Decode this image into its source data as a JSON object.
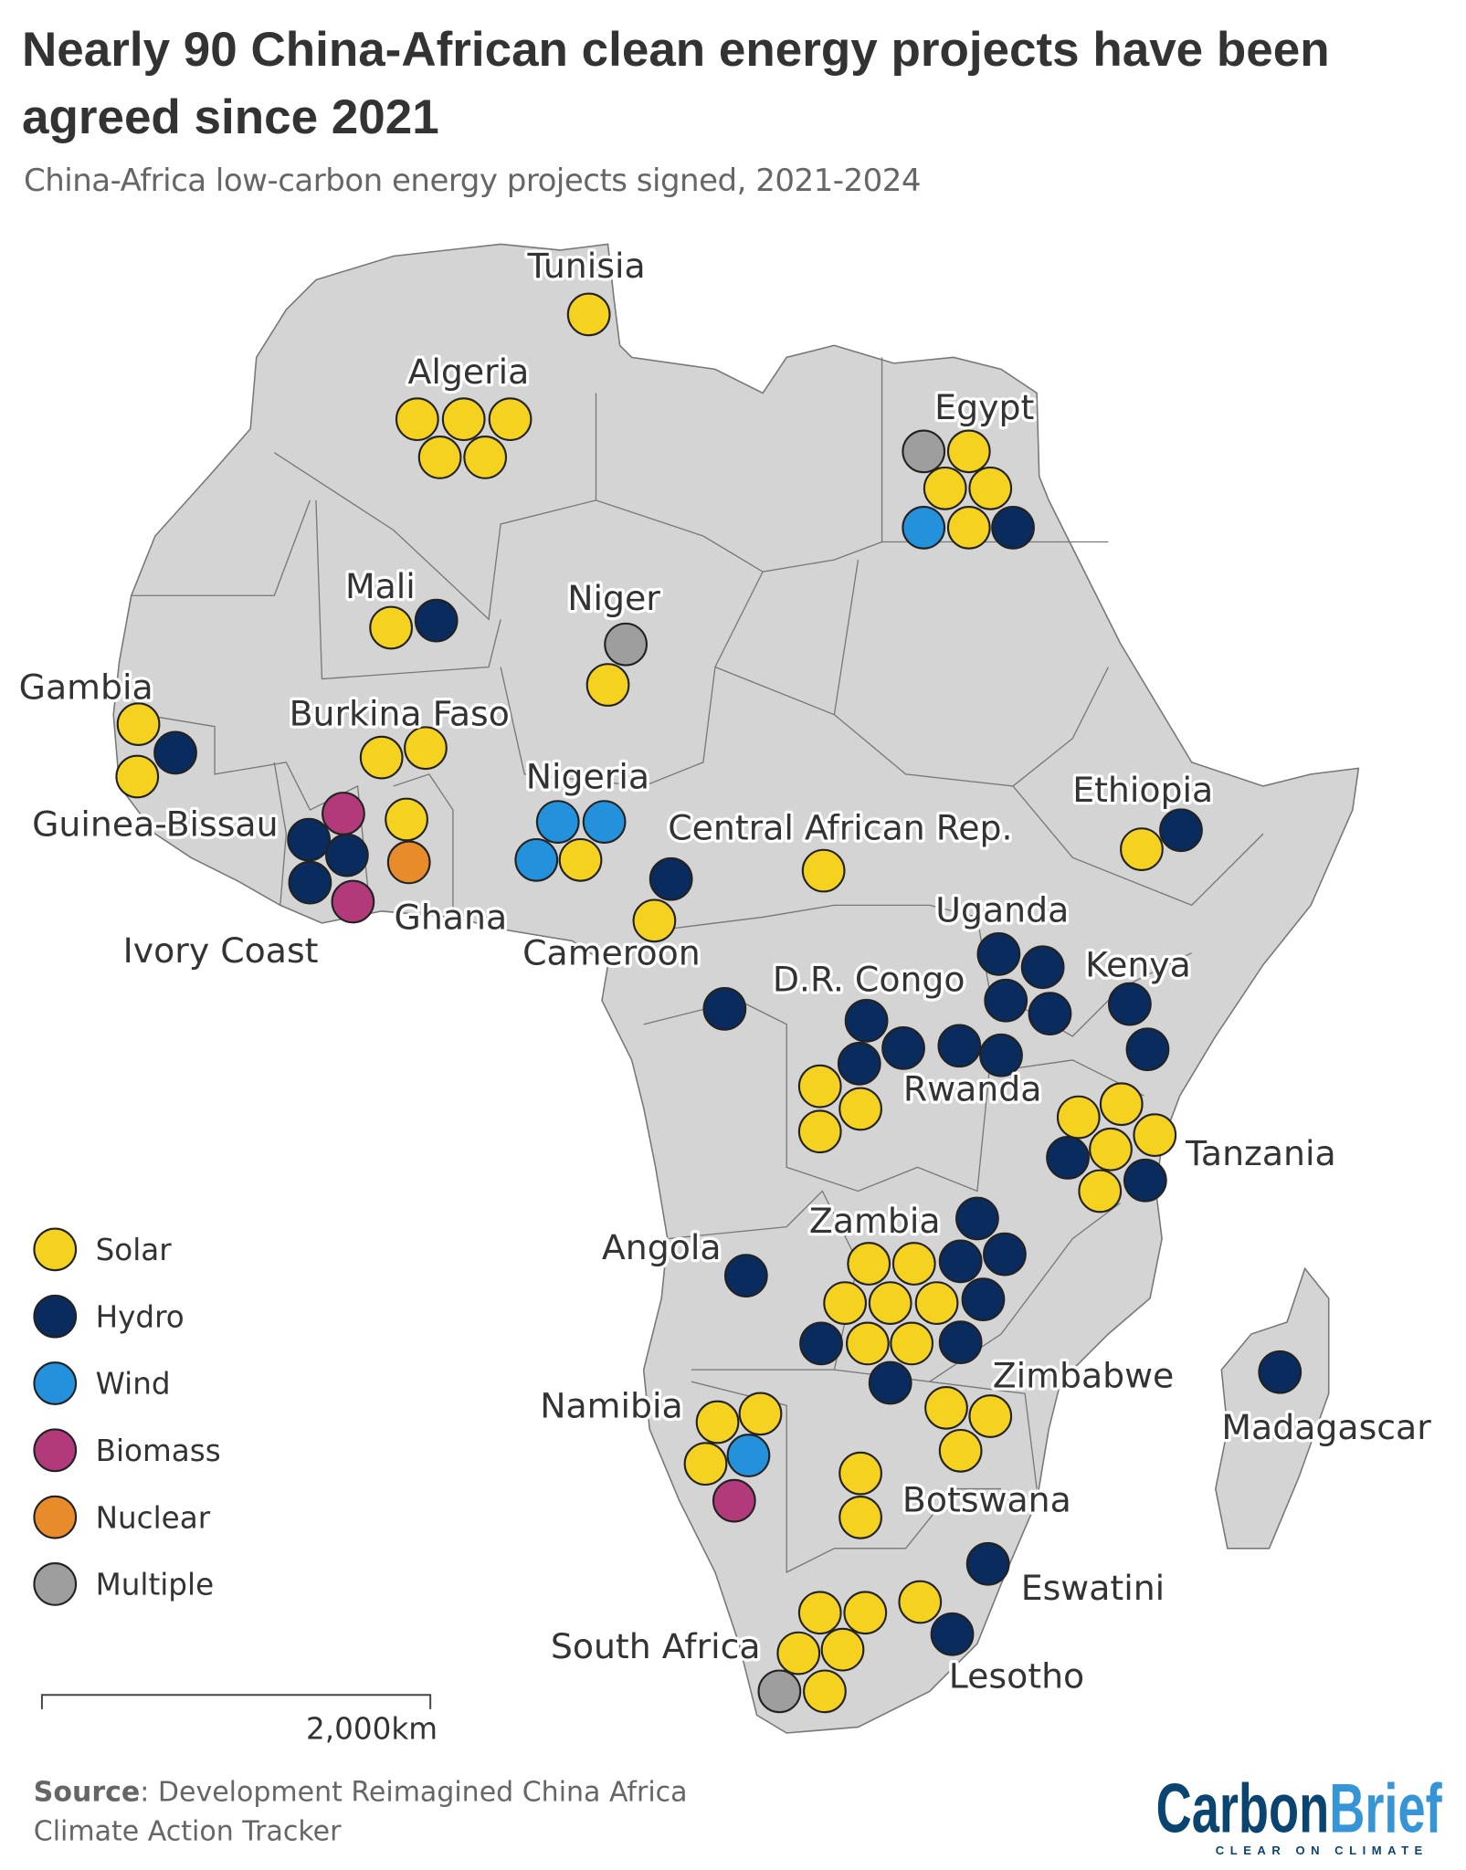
{
  "title": "Nearly 90 China-African clean energy projects have been agreed since 2021",
  "subtitle": "China-Africa low-carbon energy projects signed, 2021-2024",
  "colors": {
    "Solar": "#f5d21f",
    "Hydro": "#0a2b5e",
    "Wind": "#2391dc",
    "Biomass": "#b23a7a",
    "Nuclear": "#e88c2b",
    "Multiple": "#9e9e9e",
    "land": "#d4d4d4",
    "border": "#777777"
  },
  "legend": [
    {
      "label": "Solar"
    },
    {
      "label": "Hydro"
    },
    {
      "label": "Wind"
    },
    {
      "label": "Biomass"
    },
    {
      "label": "Nuclear"
    },
    {
      "label": "Multiple"
    }
  ],
  "countries": [
    {
      "name": "Tunisia",
      "projects": [
        "Solar"
      ]
    },
    {
      "name": "Algeria",
      "projects": [
        "Solar",
        "Solar",
        "Solar",
        "Solar",
        "Solar"
      ]
    },
    {
      "name": "Egypt",
      "projects": [
        "Multiple",
        "Solar",
        "Solar",
        "Solar",
        "Wind",
        "Solar",
        "Hydro"
      ]
    },
    {
      "name": "Mali",
      "projects": [
        "Solar",
        "Hydro"
      ]
    },
    {
      "name": "Niger",
      "projects": [
        "Multiple",
        "Solar"
      ]
    },
    {
      "name": "Gambia",
      "projects": [
        "Solar",
        "Solar"
      ]
    },
    {
      "name": "Guinea-Bissau",
      "projects": [
        "Hydro"
      ]
    },
    {
      "name": "Burkina Faso",
      "projects": [
        "Solar",
        "Solar"
      ]
    },
    {
      "name": "Ivory Coast",
      "projects": [
        "Biomass",
        "Hydro",
        "Hydro",
        "Hydro",
        "Biomass"
      ]
    },
    {
      "name": "Ghana",
      "projects": [
        "Solar",
        "Nuclear"
      ]
    },
    {
      "name": "Nigeria",
      "projects": [
        "Wind",
        "Wind",
        "Wind",
        "Solar"
      ]
    },
    {
      "name": "Cameroon",
      "projects": [
        "Hydro",
        "Solar"
      ]
    },
    {
      "name": "Central African Rep.",
      "projects": [
        "Solar"
      ]
    },
    {
      "name": "Ethiopia",
      "projects": [
        "Hydro",
        "Solar"
      ]
    },
    {
      "name": "Uganda",
      "projects": [
        "Hydro",
        "Hydro",
        "Hydro",
        "Hydro"
      ]
    },
    {
      "name": "Kenya",
      "projects": [
        "Hydro",
        "Hydro"
      ]
    },
    {
      "name": "D.R. Congo",
      "projects": [
        "Hydro",
        "Hydro",
        "Hydro",
        "Hydro",
        "Solar",
        "Solar",
        "Solar"
      ]
    },
    {
      "name": "Rwanda",
      "projects": [
        "Hydro",
        "Hydro"
      ]
    },
    {
      "name": "Tanzania",
      "projects": [
        "Solar",
        "Solar",
        "Solar",
        "Solar",
        "Solar",
        "Hydro",
        "Hydro"
      ]
    },
    {
      "name": "Zambia",
      "projects": [
        "Hydro",
        "Hydro",
        "Hydro",
        "Hydro",
        "Hydro",
        "Hydro",
        "Hydro",
        "Solar",
        "Solar",
        "Solar",
        "Solar",
        "Solar",
        "Solar",
        "Solar"
      ]
    },
    {
      "name": "Angola",
      "projects": [
        "Hydro"
      ]
    },
    {
      "name": "Madagascar",
      "projects": [
        "Hydro"
      ]
    },
    {
      "name": "Zimbabwe",
      "projects": [
        "Solar",
        "Solar",
        "Solar"
      ]
    },
    {
      "name": "Namibia",
      "projects": [
        "Solar",
        "Solar",
        "Solar",
        "Wind",
        "Biomass"
      ]
    },
    {
      "name": "Botswana",
      "projects": [
        "Solar",
        "Solar"
      ]
    },
    {
      "name": "Eswatini",
      "projects": [
        "Hydro"
      ]
    },
    {
      "name": "Lesotho",
      "projects": [
        "Solar",
        "Hydro"
      ]
    },
    {
      "name": "South Africa",
      "projects": [
        "Solar",
        "Solar",
        "Solar",
        "Solar",
        "Solar",
        "Multiple"
      ]
    }
  ],
  "scale_bar": {
    "label": "2,000km"
  },
  "source": {
    "label": "Source",
    "text": ": Development Reimagined China Africa",
    "text2": "Climate Action Tracker"
  },
  "logo": {
    "part1": "Carbon",
    "part2": "Brief",
    "tagline": "CLEAR ON CLIMATE"
  }
}
